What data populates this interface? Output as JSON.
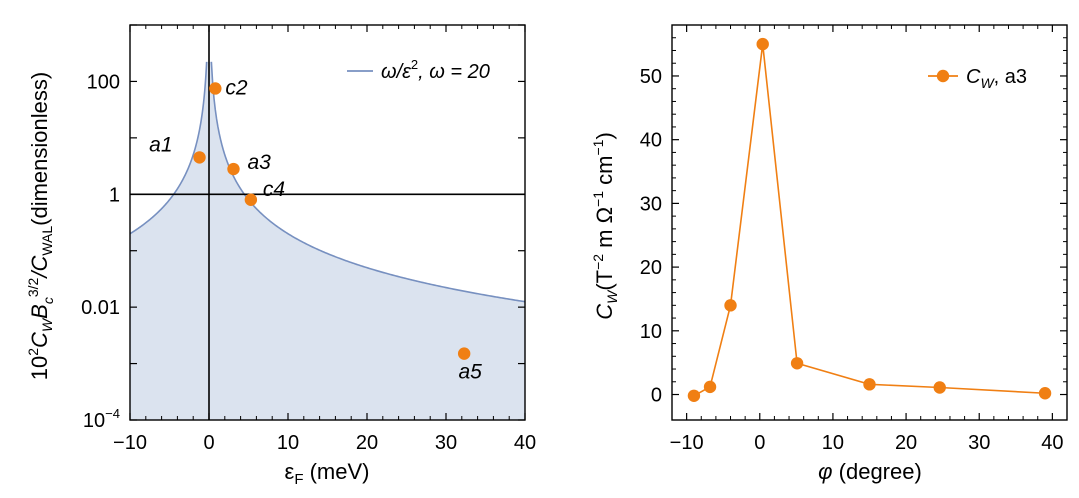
{
  "chart_data": [
    {
      "type": "line",
      "yscale": "log",
      "xlabel": "εF (meV)",
      "xlabel_main": "ε",
      "xlabel_sub": "F",
      "xlabel_unit": " (meV)",
      "ylabel": "10²C_W B_c^{3/2}/C_WAL (dimensionless)",
      "ylabel_parts": {
        "pre": "10",
        "pre_sup": "2",
        "c": "C",
        "c_sub": "W",
        "b": "B",
        "b_sub": "c",
        "b_sup": "3/2",
        "slash": "/C",
        "wal_sub": "WAL",
        "tail": "(dimensionless)"
      },
      "xlim": [
        -10,
        40
      ],
      "ylim_log10": [
        -4,
        3
      ],
      "xticks": [
        -10,
        0,
        10,
        20,
        30,
        40
      ],
      "xtick_labels": [
        "−10",
        "0",
        "10",
        "20",
        "30",
        "40"
      ],
      "yticks": [
        {
          "log10": 2,
          "label": "100"
        },
        {
          "log10": 0,
          "label": "1"
        },
        {
          "log10": -2,
          "label": "0.01"
        },
        {
          "log10": -4,
          "label": "10",
          "sup": "−4"
        }
      ],
      "curve": {
        "name": "ω/ε², ω = 20",
        "legend_main": "ω/ε",
        "legend_sup": "2",
        "legend_tail": ", ω = 20",
        "omega": 20,
        "color": "#7790c0",
        "fill": "#dbe3ef"
      },
      "reference_lines": {
        "y": 1,
        "x": 0
      },
      "points": [
        {
          "label": "a1",
          "x": -1.2,
          "y": 4.5
        },
        {
          "label": "c2",
          "x": 0.8,
          "y": 75
        },
        {
          "label": "a3",
          "x": 3.1,
          "y": 2.8
        },
        {
          "label": "c4",
          "x": 5.3,
          "y": 0.8
        },
        {
          "label": "a5",
          "x": 32.3,
          "y": 0.0015
        }
      ],
      "point_color": "#f07f13"
    },
    {
      "type": "line",
      "xlabel": "φ (degree)",
      "xlabel_main": "φ",
      "xlabel_unit": " (degree)",
      "ylabel": "C_W(T⁻² m Ω⁻¹ cm⁻¹)",
      "ylabel_parts": {
        "c": "C",
        "c_sub": "W",
        "open": "(T",
        "s1": "−2",
        "mid": " m Ω",
        "s2": "−1",
        "mid2": " cm",
        "s3": "−1",
        "close": ")"
      },
      "xlim": [
        -12,
        42
      ],
      "ylim": [
        -4,
        58
      ],
      "xticks": [
        -10,
        0,
        10,
        20,
        30,
        40
      ],
      "xtick_labels": [
        "−10",
        "0",
        "10",
        "20",
        "30",
        "40"
      ],
      "yticks": [
        0,
        10,
        20,
        30,
        40,
        50
      ],
      "ytick_labels": [
        "0",
        "10",
        "20",
        "30",
        "40",
        "50"
      ],
      "series": [
        {
          "name": "CW, a3",
          "legend_main": "C",
          "legend_sub": "W",
          "legend_tail": ", a3",
          "color": "#f07f13",
          "x": [
            -9,
            -6.8,
            -4,
            0.4,
            5.1,
            15,
            24.6,
            39
          ],
          "y": [
            -0.2,
            1.2,
            14,
            55,
            4.9,
            1.6,
            1.1,
            0.2
          ]
        }
      ]
    }
  ]
}
